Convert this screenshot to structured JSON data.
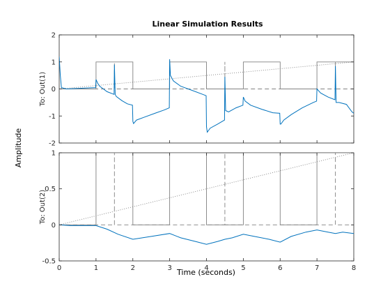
{
  "chart_data": {
    "type": "line",
    "title": "Linear Simulation Results",
    "xlabel": "Time (seconds)",
    "ylabel": "Amplitude",
    "xlim": [
      0,
      8
    ],
    "xticks": [
      "0",
      "1",
      "2",
      "3",
      "4",
      "5",
      "6",
      "7",
      "8"
    ],
    "grid": false,
    "colors": {
      "response": "#0072bd",
      "input": "#808080",
      "axes": "#262626"
    },
    "panels": [
      {
        "ylabel": "To: Out(1)",
        "ylim": [
          -2,
          2
        ],
        "yticks": [
          "2",
          "1",
          "0",
          "-1",
          "-2"
        ],
        "ytick_values": [
          2,
          1,
          0,
          -1,
          -2
        ],
        "input_square": [
          [
            0,
            0
          ],
          [
            1,
            0
          ],
          [
            1,
            1
          ],
          [
            2,
            1
          ],
          [
            2,
            0
          ],
          [
            3,
            0
          ],
          [
            3,
            1
          ],
          [
            4,
            1
          ],
          [
            4,
            0
          ],
          [
            5,
            0
          ],
          [
            5,
            1
          ],
          [
            6,
            1
          ],
          [
            6,
            0
          ],
          [
            7,
            0
          ],
          [
            7,
            1
          ],
          [
            8,
            1
          ]
        ],
        "input_pulse": [
          [
            0,
            0
          ],
          [
            1.5,
            0
          ],
          [
            1.5,
            1
          ],
          [
            1.5,
            0
          ],
          [
            4.5,
            0
          ],
          [
            4.5,
            1
          ],
          [
            4.5,
            0
          ],
          [
            7.5,
            0
          ],
          [
            7.5,
            1
          ],
          [
            7.5,
            0
          ],
          [
            8,
            0
          ]
        ],
        "input_ramp": [
          [
            0,
            0
          ],
          [
            8,
            1
          ]
        ],
        "response_spikes": [
          0,
          1,
          1.5,
          3,
          4.5,
          6,
          7.5
        ],
        "response": [
          [
            0,
            1.2
          ],
          [
            0.03,
            0.5
          ],
          [
            0.06,
            0.05
          ],
          [
            0.2,
            0
          ],
          [
            0.5,
            0.02
          ],
          [
            0.99,
            0.05
          ],
          [
            1.0,
            0.35
          ],
          [
            1.05,
            0.2
          ],
          [
            1.1,
            0.1
          ],
          [
            1.2,
            0
          ],
          [
            1.3,
            -0.1
          ],
          [
            1.49,
            -0.2
          ],
          [
            1.5,
            0.9
          ],
          [
            1.52,
            -0.2
          ],
          [
            1.55,
            -0.28
          ],
          [
            1.7,
            -0.43
          ],
          [
            1.85,
            -0.55
          ],
          [
            1.99,
            -0.6
          ],
          [
            2.0,
            -1.2
          ],
          [
            2.02,
            -1.28
          ],
          [
            2.1,
            -1.15
          ],
          [
            2.3,
            -1.05
          ],
          [
            2.6,
            -0.9
          ],
          [
            2.85,
            -0.78
          ],
          [
            2.99,
            -0.7
          ],
          [
            3.0,
            1.1
          ],
          [
            3.02,
            0.5
          ],
          [
            3.1,
            0.3
          ],
          [
            3.3,
            0.1
          ],
          [
            3.6,
            -0.05
          ],
          [
            3.9,
            -0.2
          ],
          [
            3.99,
            -0.25
          ],
          [
            4.0,
            -1.4
          ],
          [
            4.02,
            -1.6
          ],
          [
            4.1,
            -1.45
          ],
          [
            4.3,
            -1.3
          ],
          [
            4.49,
            -1.15
          ],
          [
            4.5,
            0.45
          ],
          [
            4.52,
            -0.8
          ],
          [
            4.6,
            -0.85
          ],
          [
            4.8,
            -0.7
          ],
          [
            4.99,
            -0.6
          ],
          [
            5.0,
            -0.3
          ],
          [
            5.05,
            -0.45
          ],
          [
            5.2,
            -0.6
          ],
          [
            5.5,
            -0.75
          ],
          [
            5.8,
            -0.88
          ],
          [
            5.99,
            -0.9
          ],
          [
            6.0,
            -1.3
          ],
          [
            6.02,
            -1.3
          ],
          [
            6.1,
            -1.15
          ],
          [
            6.3,
            -0.95
          ],
          [
            6.6,
            -0.7
          ],
          [
            6.9,
            -0.5
          ],
          [
            6.99,
            -0.45
          ],
          [
            7.0,
            0
          ],
          [
            7.1,
            -0.15
          ],
          [
            7.3,
            -0.3
          ],
          [
            7.49,
            -0.4
          ],
          [
            7.5,
            0.85
          ],
          [
            7.52,
            -0.5
          ],
          [
            7.6,
            -0.5
          ],
          [
            7.8,
            -0.57
          ],
          [
            7.95,
            -0.85
          ],
          [
            8.0,
            -0.9
          ]
        ]
      },
      {
        "ylabel": "To: Out(2)",
        "ylim": [
          -0.5,
          1
        ],
        "yticks": [
          "1",
          "0.5",
          "0",
          "-0.5"
        ],
        "ytick_values": [
          1,
          0.5,
          0,
          -0.5
        ],
        "input_square": [
          [
            0,
            0
          ],
          [
            1,
            0
          ],
          [
            1,
            1
          ],
          [
            2,
            1
          ],
          [
            2,
            0
          ],
          [
            3,
            0
          ],
          [
            3,
            1
          ],
          [
            4,
            1
          ],
          [
            4,
            0
          ],
          [
            5,
            0
          ],
          [
            5,
            1
          ],
          [
            6,
            1
          ],
          [
            6,
            0
          ],
          [
            7,
            0
          ],
          [
            7,
            1
          ],
          [
            8,
            1
          ]
        ],
        "input_pulse": [
          [
            0,
            0
          ],
          [
            1.5,
            0
          ],
          [
            1.5,
            1
          ],
          [
            1.5,
            0
          ],
          [
            4.5,
            0
          ],
          [
            4.5,
            1
          ],
          [
            4.5,
            0
          ],
          [
            7.5,
            0
          ],
          [
            7.5,
            1
          ],
          [
            7.5,
            0
          ],
          [
            8,
            0
          ]
        ],
        "input_ramp": [
          [
            0,
            0
          ],
          [
            8,
            1
          ]
        ],
        "response": [
          [
            0,
            0
          ],
          [
            0.3,
            -0.01
          ],
          [
            1.0,
            -0.01
          ],
          [
            1.3,
            -0.06
          ],
          [
            1.6,
            -0.13
          ],
          [
            2.0,
            -0.2
          ],
          [
            2.5,
            -0.16
          ],
          [
            3.0,
            -0.12
          ],
          [
            3.3,
            -0.18
          ],
          [
            3.7,
            -0.23
          ],
          [
            4.0,
            -0.27
          ],
          [
            4.3,
            -0.23
          ],
          [
            4.5,
            -0.2
          ],
          [
            4.7,
            -0.18
          ],
          [
            5.0,
            -0.13
          ],
          [
            5.3,
            -0.16
          ],
          [
            5.7,
            -0.2
          ],
          [
            6.0,
            -0.24
          ],
          [
            6.3,
            -0.16
          ],
          [
            6.7,
            -0.1
          ],
          [
            7.0,
            -0.07
          ],
          [
            7.3,
            -0.1
          ],
          [
            7.5,
            -0.12
          ],
          [
            7.7,
            -0.1
          ],
          [
            8.0,
            -0.12
          ]
        ]
      }
    ]
  }
}
